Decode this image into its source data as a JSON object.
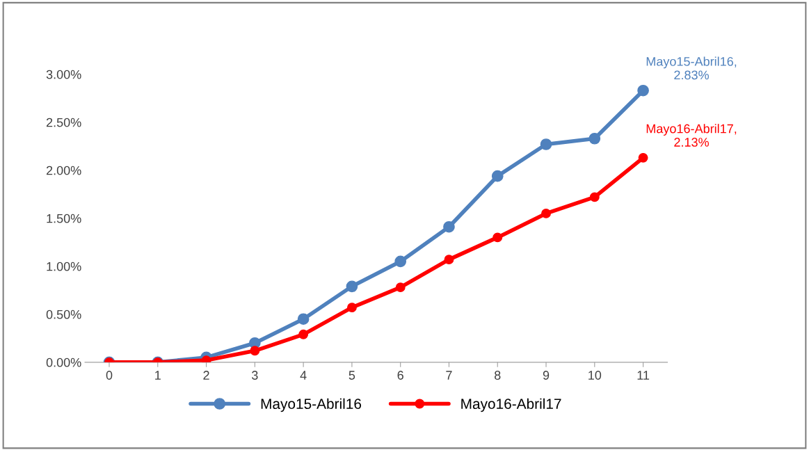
{
  "chart_data": {
    "type": "line",
    "categories": [
      "0",
      "1",
      "2",
      "3",
      "4",
      "5",
      "6",
      "7",
      "8",
      "9",
      "10",
      "11"
    ],
    "series": [
      {
        "name": "Mayo15-Abril16",
        "color": "#4f81bd",
        "values": [
          0,
          0,
          0.05,
          0.2,
          0.45,
          0.79,
          1.05,
          1.41,
          1.94,
          2.27,
          2.33,
          2.83
        ]
      },
      {
        "name": "Mayo16-Abril17",
        "color": "#ff0000",
        "values": [
          0,
          0,
          0.02,
          0.12,
          0.29,
          0.57,
          0.78,
          1.07,
          1.3,
          1.55,
          1.72,
          2.13
        ]
      }
    ],
    "ylim": [
      0,
      3
    ],
    "yticks": [
      {
        "value": 0,
        "label": "0.00%"
      },
      {
        "value": 0.5,
        "label": "0.50%"
      },
      {
        "value": 1,
        "label": "1.00%"
      },
      {
        "value": 1.5,
        "label": "1.50%"
      },
      {
        "value": 2,
        "label": "2.00%"
      },
      {
        "value": 2.5,
        "label": "2.50%"
      },
      {
        "value": 3,
        "label": "3.00%"
      }
    ],
    "annotations": [
      {
        "text": "Mayo15-Abril16,\n2.83%",
        "x": "11",
        "y": 2.83
      },
      {
        "text": "Mayo16-Abril17,\n2.13%",
        "x": "11",
        "y": 2.13
      }
    ],
    "grid": false,
    "legend": "bottom",
    "marker": "circle",
    "line_style": "solid"
  }
}
